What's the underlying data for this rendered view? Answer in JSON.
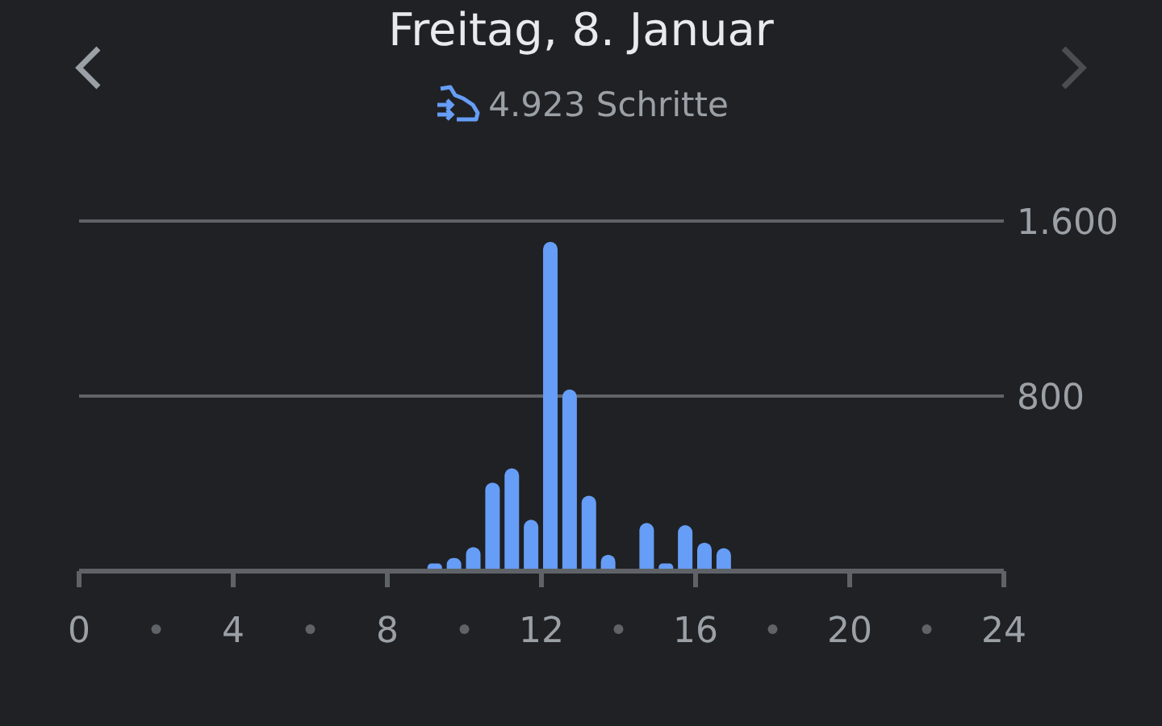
{
  "chart_data": {
    "type": "bar",
    "title": "Freitag, 8. Januar",
    "subtitle": "4.923 Schritte",
    "x": [
      9.25,
      9.75,
      10.25,
      10.75,
      11.25,
      11.75,
      12.25,
      12.75,
      13.25,
      13.75,
      14.75,
      15.25,
      15.75,
      16.25,
      16.75
    ],
    "values": [
      35,
      60,
      110,
      405,
      470,
      235,
      1505,
      830,
      345,
      75,
      220,
      35,
      210,
      130,
      105
    ],
    "color": "#669df6",
    "xlim": [
      0,
      24
    ],
    "xticks": [
      0,
      4,
      8,
      12,
      16,
      20,
      24
    ],
    "ylim": [
      0,
      1600
    ],
    "yticks": [
      {
        "value": 800,
        "label": "800"
      },
      {
        "value": 1600,
        "label": "1.600"
      }
    ],
    "grid": "y"
  }
}
